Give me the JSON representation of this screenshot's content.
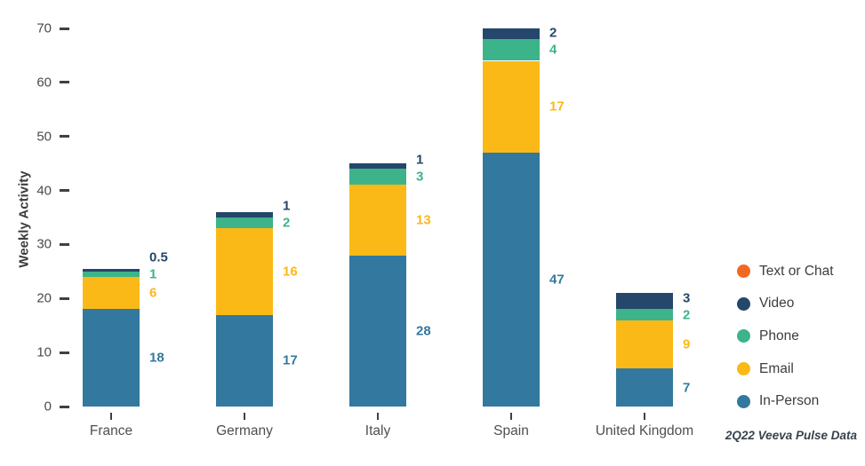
{
  "chart_data": {
    "type": "bar",
    "stacked": true,
    "title": "",
    "ylabel": "Weekly Activity",
    "xlabel": "",
    "ylim": [
      0,
      70
    ],
    "ytick_step": 10,
    "grid": false,
    "legend_position": "right",
    "categories": [
      "France",
      "Germany",
      "Italy",
      "Spain",
      "United Kingdom"
    ],
    "series": [
      {
        "name": "In-Person",
        "color": "#33789E",
        "values": [
          18,
          17,
          28,
          47,
          7
        ]
      },
      {
        "name": "Email",
        "color": "#FBB917",
        "values": [
          6,
          16,
          13,
          17,
          9
        ]
      },
      {
        "name": "Phone",
        "color": "#3DB389",
        "values": [
          1,
          2,
          3,
          4,
          2
        ]
      },
      {
        "name": "Video",
        "color": "#24476B",
        "values": [
          0.5,
          1,
          1,
          2,
          3
        ]
      },
      {
        "name": "Text or Chat",
        "color": "#F26822",
        "values": [
          0,
          0,
          0,
          0,
          0
        ]
      }
    ],
    "legend": [
      {
        "label": "Text or Chat",
        "color": "#F26822"
      },
      {
        "label": "Video",
        "color": "#24476B"
      },
      {
        "label": "Phone",
        "color": "#3DB389"
      },
      {
        "label": "Email",
        "color": "#FBB917"
      },
      {
        "label": "In-Person",
        "color": "#33789E"
      }
    ],
    "data_labels": true
  },
  "footer": {
    "source_note": "2Q22 Veeva Pulse Data"
  }
}
